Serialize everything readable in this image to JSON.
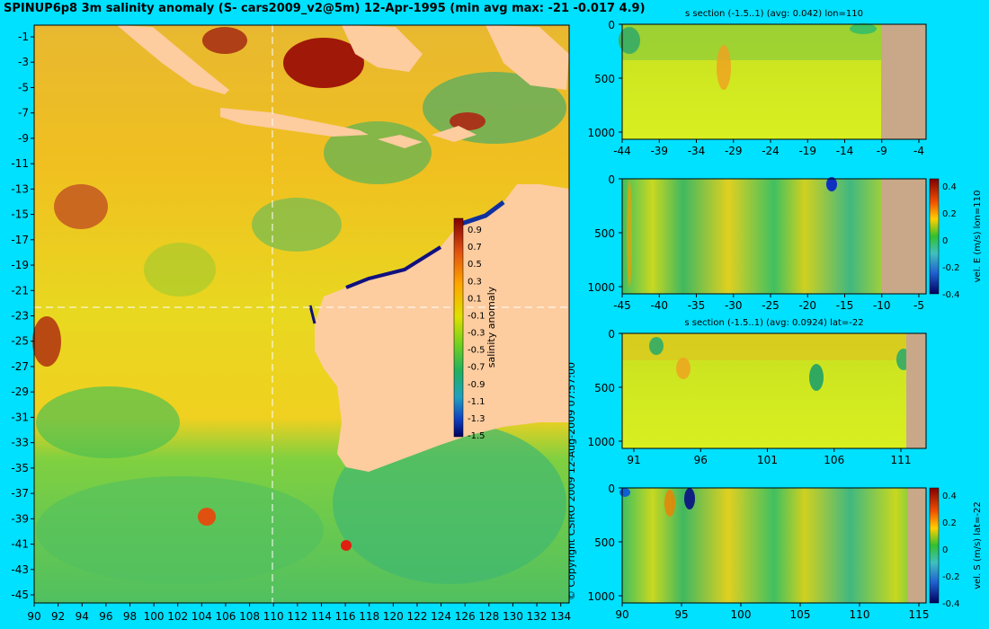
{
  "title": "SPINUP6p8 3m salinity anomaly (S- cars2009_v2@5m) 12-Apr-1995 (min avg max: -21 -0.017 4.9)",
  "copyright": "© Copyright CSIRO 2009  12-Aug-2009 07:57:00",
  "colors": {
    "background": "#00e0ff",
    "land": "#fdcc9f",
    "section_land": "#c8a888"
  },
  "map": {
    "lon_ticks": [
      "90",
      "92",
      "94",
      "96",
      "98",
      "100",
      "102",
      "104",
      "106",
      "108",
      "110",
      "112",
      "114",
      "116",
      "118",
      "120",
      "122",
      "124",
      "126",
      "128",
      "130",
      "132",
      "134"
    ],
    "lat_ticks": [
      "-1",
      "-3",
      "-5",
      "-7",
      "-9",
      "-11",
      "-13",
      "-15",
      "-17",
      "-19",
      "-21",
      "-23",
      "-25",
      "-27",
      "-29",
      "-31",
      "-33",
      "-35",
      "-37",
      "-39",
      "-41",
      "-43",
      "-45"
    ],
    "colorbar_label": "salinity anomaly",
    "colorbar_ticks": [
      "0.9",
      "0.7",
      "0.5",
      "0.3",
      "0.1",
      "-0.1",
      "-0.3",
      "-0.5",
      "-0.7",
      "-0.9",
      "-1.1",
      "-1.3",
      "-1.5"
    ]
  },
  "panels": [
    {
      "title": "s section (-1.5..1) (avg: 0.042) lon=110",
      "x_ticks": [
        "-44",
        "-39",
        "-34",
        "-29",
        "-24",
        "-19",
        "-14",
        "-9",
        "-4"
      ],
      "y_ticks": [
        "0",
        "500",
        "1000"
      ]
    },
    {
      "title": "",
      "x_ticks": [
        "-45",
        "-40",
        "-35",
        "-30",
        "-25",
        "-20",
        "-15",
        "-10",
        "-5"
      ],
      "y_ticks": [
        "0",
        "500",
        "1000"
      ],
      "colorbar_label": "vel. E (m/s) lon=110",
      "colorbar_ticks": [
        "0.4",
        "0.2",
        "0",
        "-0.2",
        "-0.4"
      ]
    },
    {
      "title": "s section (-1.5..1) (avg: 0.0924) lat=-22",
      "x_ticks": [
        "91",
        "96",
        "101",
        "106",
        "111"
      ],
      "y_ticks": [
        "0",
        "500",
        "1000"
      ]
    },
    {
      "title": "",
      "x_ticks": [
        "90",
        "95",
        "100",
        "105",
        "110",
        "115"
      ],
      "y_ticks": [
        "0",
        "500",
        "1000"
      ],
      "colorbar_label": "vel. S (m/s) lat=-22",
      "colorbar_ticks": [
        "0.4",
        "0.2",
        "0",
        "-0.2",
        "-0.4"
      ]
    }
  ]
}
